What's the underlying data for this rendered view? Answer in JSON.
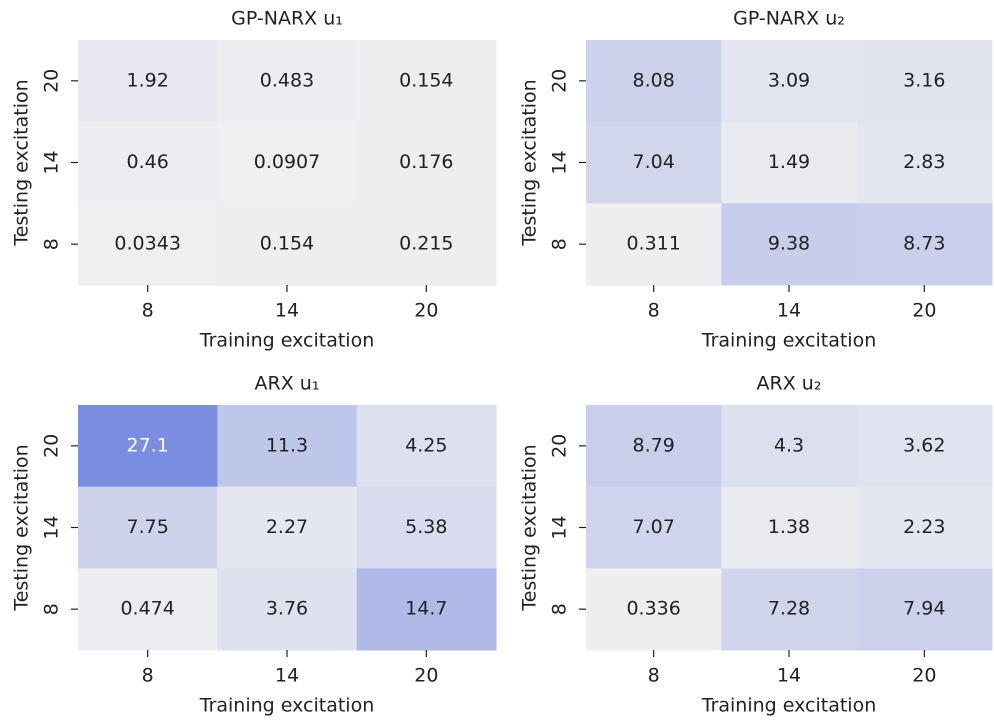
{
  "chart_data": [
    {
      "type": "heatmap",
      "title": "GP-NARX u₁",
      "xlabel": "Training excitation",
      "ylabel": "Testing excitation",
      "categories": [
        "8",
        "14",
        "20"
      ],
      "y_categories": [
        "20",
        "14",
        "8"
      ],
      "values": [
        [
          1.92,
          0.483,
          0.154
        ],
        [
          0.46,
          0.0907,
          0.176
        ],
        [
          0.0343,
          0.154,
          0.215
        ]
      ],
      "cmap": [
        "#efeff1",
        "#7a8de0"
      ],
      "vlim": [
        0,
        27.1
      ]
    },
    {
      "type": "heatmap",
      "title": "GP-NARX u₂",
      "xlabel": "Training excitation",
      "ylabel": "Testing excitation",
      "categories": [
        "8",
        "14",
        "20"
      ],
      "y_categories": [
        "20",
        "14",
        "8"
      ],
      "values": [
        [
          8.08,
          3.09,
          3.16
        ],
        [
          7.04,
          1.49,
          2.83
        ],
        [
          0.311,
          9.38,
          8.73
        ]
      ],
      "cmap": [
        "#efeff1",
        "#7a8de0"
      ],
      "vlim": [
        0,
        27.1
      ]
    },
    {
      "type": "heatmap",
      "title": "ARX u₁",
      "xlabel": "Training excitation",
      "ylabel": "Testing excitation",
      "categories": [
        "8",
        "14",
        "20"
      ],
      "y_categories": [
        "20",
        "14",
        "8"
      ],
      "values": [
        [
          27.1,
          11.3,
          4.25
        ],
        [
          7.75,
          2.27,
          5.38
        ],
        [
          0.474,
          3.76,
          14.7
        ]
      ],
      "cmap": [
        "#efeff1",
        "#7a8de0"
      ],
      "vlim": [
        0,
        27.1
      ]
    },
    {
      "type": "heatmap",
      "title": "ARX u₂",
      "xlabel": "Training excitation",
      "ylabel": "Testing excitation",
      "categories": [
        "8",
        "14",
        "20"
      ],
      "y_categories": [
        "20",
        "14",
        "8"
      ],
      "values": [
        [
          8.79,
          4.3,
          3.62
        ],
        [
          7.07,
          1.38,
          2.23
        ],
        [
          0.336,
          7.28,
          7.94
        ]
      ],
      "cmap": [
        "#efeff1",
        "#7a8de0"
      ],
      "vlim": [
        0,
        27.1
      ]
    }
  ]
}
